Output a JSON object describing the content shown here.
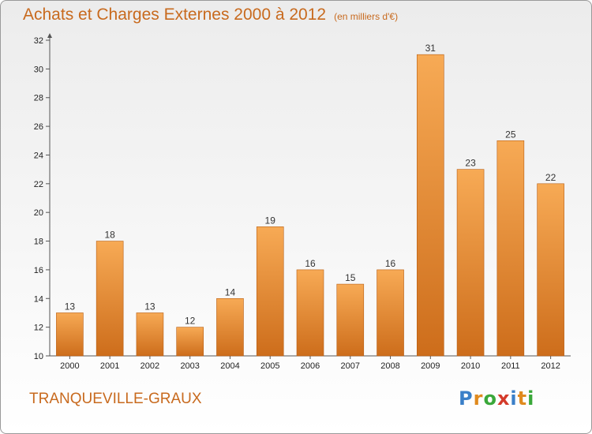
{
  "title": "Achats et Charges Externes 2000 à 2012",
  "unit": "(en milliers d'€)",
  "commune": "TRANQUEVILLE-GRAUX",
  "logo": {
    "letters": [
      "P",
      "r",
      "o",
      "x",
      "i",
      "t",
      "i"
    ],
    "colors": [
      "#3a7fc8",
      "#e08a1e",
      "#3aa83a",
      "#d43a2a",
      "#3a7fc8",
      "#e08a1e",
      "#3aa83a"
    ]
  },
  "colors": {
    "bar_top": "#f7aa55",
    "bar_bottom": "#cd6d1b",
    "title": "#c86a1e"
  },
  "chart_data": {
    "type": "bar",
    "title": "Achats et Charges Externes 2000 à 2012",
    "categories": [
      "2000",
      "2001",
      "2002",
      "2003",
      "2004",
      "2005",
      "2006",
      "2007",
      "2008",
      "2009",
      "2010",
      "2011",
      "2012"
    ],
    "values": [
      13,
      18,
      13,
      12,
      14,
      19,
      16,
      15,
      16,
      31,
      23,
      25,
      22
    ],
    "ylim": [
      10,
      32
    ],
    "yticks": [
      10,
      12,
      14,
      16,
      18,
      20,
      22,
      24,
      26,
      28,
      30,
      32
    ],
    "grid": false,
    "legend": "none"
  }
}
